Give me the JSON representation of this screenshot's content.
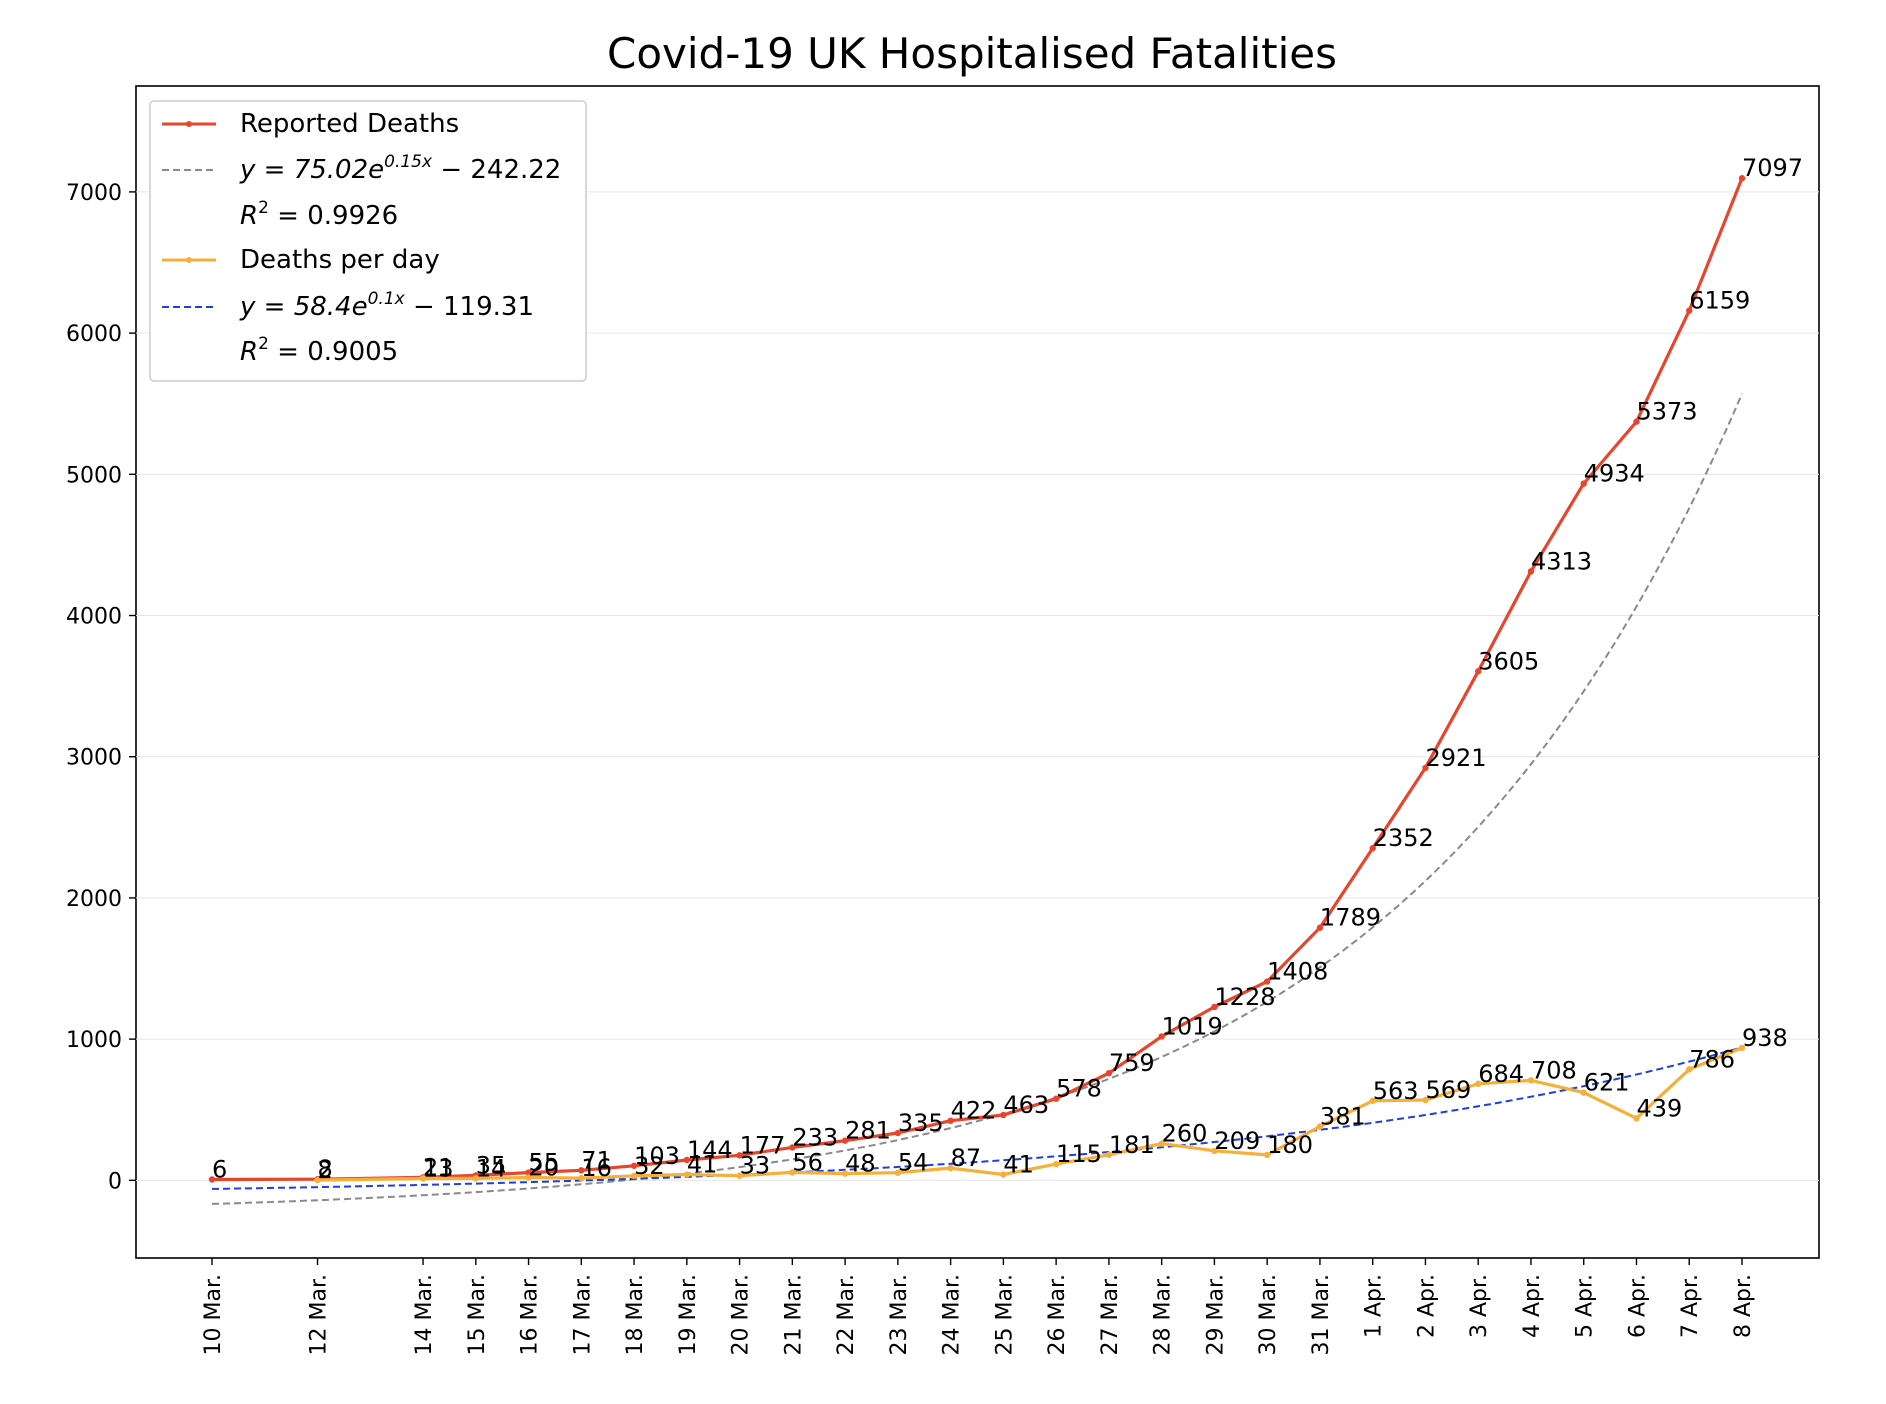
{
  "chart_data": {
    "type": "line",
    "title": "Covid-19 UK Hospitalised Fatalities",
    "xlabel": "",
    "ylabel": "",
    "ylim": [
      -550,
      7750
    ],
    "yticks": [
      0,
      1000,
      2000,
      3000,
      4000,
      5000,
      6000,
      7000
    ],
    "grid": "horizontal",
    "legend_position": "top-left",
    "day_index": [
      0,
      2,
      4,
      5,
      6,
      7,
      8,
      9,
      10,
      11,
      12,
      13,
      14,
      15,
      16,
      17,
      18,
      19,
      20,
      21,
      22,
      23,
      24,
      25,
      26,
      27,
      28,
      29
    ],
    "x_labels": [
      "10 Mar.",
      "12 Mar.",
      "14 Mar.",
      "15 Mar.",
      "16 Mar.",
      "17 Mar.",
      "18 Mar.",
      "19 Mar.",
      "20 Mar.",
      "21 Mar.",
      "22 Mar.",
      "23 Mar.",
      "24 Mar.",
      "25 Mar.",
      "26 Mar.",
      "27 Mar.",
      "28 Mar.",
      "29 Mar.",
      "30 Mar.",
      "31 Mar.",
      "1 Apr.",
      "2 Apr.",
      "3 Apr.",
      "4 Apr.",
      "5 Apr.",
      "6 Apr.",
      "7 Apr.",
      "8 Apr."
    ],
    "series": [
      {
        "name": "Reported Deaths",
        "color": "#e8452c",
        "values": [
          6,
          8,
          21,
          35,
          55,
          71,
          103,
          144,
          177,
          233,
          281,
          335,
          422,
          463,
          578,
          759,
          1019,
          1228,
          1408,
          1789,
          2352,
          2921,
          3605,
          4313,
          4934,
          5373,
          6159,
          7097
        ],
        "labels": [
          "6",
          "8",
          "21",
          "35",
          "55",
          "71",
          "103",
          "144",
          "177",
          "233",
          "281",
          "335",
          "422",
          "463",
          "578",
          "759",
          "1019",
          "1228",
          "1408",
          "1789",
          "2352",
          "2921",
          "3605",
          "4313",
          "4934",
          "5373",
          "6159",
          "7097"
        ]
      },
      {
        "name": "Deaths per day",
        "color": "#f5b03c",
        "values": [
          null,
          2,
          13,
          14,
          20,
          16,
          32,
          41,
          33,
          56,
          48,
          54,
          87,
          41,
          115,
          181,
          260,
          209,
          180,
          381,
          563,
          569,
          684,
          708,
          621,
          439,
          786,
          938
        ],
        "labels": [
          "",
          "2",
          "13",
          "14",
          "20",
          "16",
          "32",
          "41",
          "33",
          "56",
          "48",
          "54",
          "87",
          "41",
          "115",
          "181",
          "260",
          "209",
          "180",
          "381",
          "563",
          "569",
          "684",
          "708",
          "621",
          "439",
          "786",
          "938"
        ]
      }
    ],
    "fits": [
      {
        "color": "#8a8a8a",
        "equation": "y = 75.02e^{0.15x} − 242.22",
        "a": 75.02,
        "b": 0.15,
        "c": -242.22,
        "r2": "R² = 0.9926"
      },
      {
        "color": "#1f3fe0",
        "equation": "y = 58.4e^{0.1x} − 119.31",
        "a": 58.4,
        "b": 0.1,
        "c": -119.31,
        "r2": "R² = 0.9005"
      }
    ]
  },
  "legend": {
    "reported_label": "Reported Deaths",
    "reported_fit_prefix": "y = 75.02e",
    "reported_fit_exp": "0.15x",
    "reported_fit_suffix": " − 242.22",
    "reported_r2_prefix": "R",
    "reported_r2_value": " = 0.9926",
    "perday_label": "Deaths per day",
    "perday_fit_prefix": "y = 58.4e",
    "perday_fit_exp": "0.1x",
    "perday_fit_suffix": " − 119.31",
    "perday_r2_prefix": "R",
    "perday_r2_value": " = 0.9005",
    "r2_exp": "2"
  }
}
